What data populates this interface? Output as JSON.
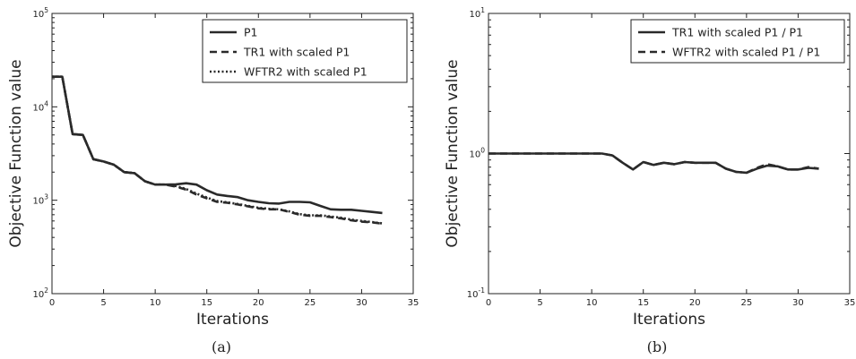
{
  "chart_data": [
    {
      "type": "line",
      "caption": "(a)",
      "xlabel": "Iterations",
      "ylabel": "Objective Function value",
      "xlim": [
        0,
        35
      ],
      "ylim": [
        100,
        100000
      ],
      "yscale": "log",
      "xticks": [
        "0",
        "5",
        "10",
        "15",
        "20",
        "25",
        "30",
        "35"
      ],
      "yticks": [
        {
          "base": "10",
          "exp": "2",
          "value": 100
        },
        {
          "base": "10",
          "exp": "3",
          "value": 1000
        },
        {
          "base": "10",
          "exp": "4",
          "value": 10000
        },
        {
          "base": "10",
          "exp": "5",
          "value": 100000
        }
      ],
      "legend_position": "top-right",
      "series": [
        {
          "name": "P1",
          "style": "solid",
          "x": [
            0,
            1,
            2,
            3,
            4,
            5,
            6,
            7,
            8,
            9,
            10,
            11,
            12,
            13,
            14,
            15,
            16,
            17,
            18,
            19,
            20,
            21,
            22,
            23,
            24,
            25,
            26,
            27,
            28,
            29,
            30,
            31,
            32
          ],
          "y": [
            21000,
            21000,
            5100,
            5000,
            2750,
            2600,
            2400,
            2000,
            1950,
            1600,
            1470,
            1470,
            1480,
            1520,
            1470,
            1280,
            1150,
            1110,
            1080,
            1000,
            960,
            930,
            920,
            960,
            960,
            950,
            870,
            800,
            790,
            790,
            770,
            750,
            730
          ]
        },
        {
          "name": "TR1 with scaled P1",
          "style": "dashed",
          "x": [
            0,
            1,
            2,
            3,
            4,
            5,
            6,
            7,
            8,
            9,
            10,
            11,
            12,
            13,
            14,
            15,
            16,
            17,
            18,
            19,
            20,
            21,
            22,
            23,
            24,
            25,
            26,
            27,
            28,
            29,
            30,
            31,
            32
          ],
          "y": [
            21000,
            21000,
            5100,
            5000,
            2750,
            2600,
            2400,
            2000,
            1950,
            1600,
            1470,
            1470,
            1400,
            1300,
            1150,
            1050,
            960,
            940,
            900,
            860,
            820,
            800,
            800,
            750,
            700,
            680,
            680,
            660,
            640,
            610,
            590,
            580,
            560
          ]
        },
        {
          "name": "WFTR2 with scaled P1",
          "style": "dotted",
          "x": [
            0,
            1,
            2,
            3,
            4,
            5,
            6,
            7,
            8,
            9,
            10,
            11,
            12,
            13,
            14,
            15,
            16,
            17,
            18,
            19,
            20,
            21,
            22,
            23,
            24,
            25,
            26,
            27,
            28,
            29,
            30,
            31,
            32
          ],
          "y": [
            21000,
            21000,
            5100,
            5000,
            2750,
            2600,
            2400,
            2000,
            1950,
            1600,
            1470,
            1470,
            1420,
            1320,
            1180,
            1070,
            980,
            950,
            910,
            870,
            830,
            810,
            800,
            760,
            710,
            690,
            690,
            670,
            650,
            620,
            600,
            585,
            565
          ]
        }
      ]
    },
    {
      "type": "line",
      "caption": "(b)",
      "xlabel": "Iterations",
      "ylabel": "Objective Function value",
      "xlim": [
        0,
        35
      ],
      "ylim": [
        0.1,
        10
      ],
      "yscale": "log",
      "xticks": [
        "0",
        "5",
        "10",
        "15",
        "20",
        "25",
        "30",
        "35"
      ],
      "yticks": [
        {
          "base": "10",
          "exp": "-1",
          "value": 0.1
        },
        {
          "base": "10",
          "exp": "0",
          "value": 1
        },
        {
          "base": "10",
          "exp": "1",
          "value": 10
        }
      ],
      "legend_position": "top-right",
      "series": [
        {
          "name": "TR1 with scaled P1 / P1",
          "style": "solid",
          "x": [
            0,
            1,
            2,
            3,
            4,
            5,
            6,
            7,
            8,
            9,
            10,
            11,
            12,
            13,
            14,
            15,
            16,
            17,
            18,
            19,
            20,
            21,
            22,
            23,
            24,
            25,
            26,
            27,
            28,
            29,
            30,
            31,
            32
          ],
          "y": [
            1.0,
            1.0,
            1.0,
            1.0,
            1.0,
            1.0,
            1.0,
            1.0,
            1.0,
            1.0,
            1.0,
            1.0,
            0.97,
            0.86,
            0.77,
            0.87,
            0.83,
            0.86,
            0.84,
            0.87,
            0.86,
            0.86,
            0.86,
            0.78,
            0.74,
            0.73,
            0.78,
            0.82,
            0.81,
            0.77,
            0.77,
            0.79,
            0.78
          ]
        },
        {
          "name": "WFTR2 with scaled P1 / P1",
          "style": "dashed",
          "x": [
            0,
            1,
            2,
            3,
            4,
            5,
            6,
            7,
            8,
            9,
            10,
            11,
            12,
            13,
            14,
            15,
            16,
            17,
            18,
            19,
            20,
            21,
            22,
            23,
            24,
            25,
            26,
            27,
            28,
            29,
            30,
            31,
            32
          ],
          "y": [
            1.0,
            1.0,
            1.0,
            1.0,
            1.0,
            1.0,
            1.0,
            1.0,
            1.0,
            1.0,
            1.0,
            1.0,
            0.97,
            0.86,
            0.77,
            0.87,
            0.83,
            0.86,
            0.84,
            0.87,
            0.86,
            0.86,
            0.86,
            0.78,
            0.74,
            0.73,
            0.79,
            0.84,
            0.81,
            0.77,
            0.77,
            0.8,
            0.78
          ]
        }
      ]
    }
  ]
}
